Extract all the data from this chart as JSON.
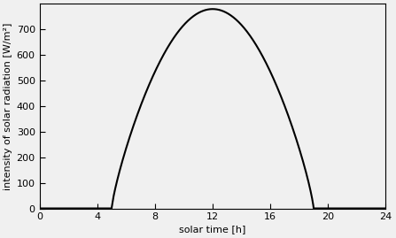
{
  "xlabel": "solar time [h]",
  "ylabel": "intensity of solar radiation [W/m²]",
  "xlim": [
    0,
    24
  ],
  "ylim": [
    0,
    800
  ],
  "xticks": [
    0,
    4,
    8,
    12,
    16,
    20,
    24
  ],
  "yticks": [
    0,
    100,
    200,
    300,
    400,
    500,
    600,
    700
  ],
  "peak_value": 780,
  "sunrise": 5.0,
  "sunset": 19.0,
  "peak_time": 12.0,
  "line_color": "#000000",
  "line_width": 1.5,
  "background_color": "#f0f0f0",
  "font_size_labels": 8,
  "font_size_ticks": 8,
  "top_ytick_clipped": 800
}
